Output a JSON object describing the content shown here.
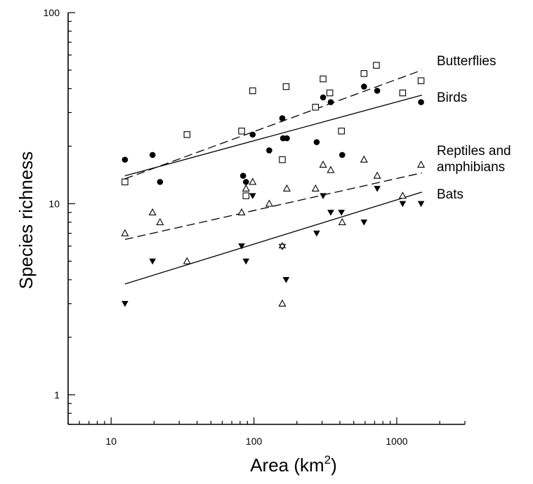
{
  "chart_data": {
    "type": "scatter",
    "xlabel": "Area (km",
    "xlabel_sup": "2",
    "xlabel_end": ")",
    "ylabel": "Species richness",
    "x_scale": "log",
    "y_scale": "log",
    "xlim": [
      5,
      3000
    ],
    "ylim": [
      0.7,
      100
    ],
    "x_ticks": [
      {
        "value": 10,
        "label": "10"
      },
      {
        "value": 100,
        "label": "100"
      },
      {
        "value": 1000,
        "label": "1000"
      }
    ],
    "y_ticks": [
      {
        "value": 1,
        "label": "1"
      },
      {
        "value": 10,
        "label": "10"
      },
      {
        "value": 100,
        "label": "100"
      }
    ],
    "grid": false,
    "series": [
      {
        "name": "Butterflies",
        "label_lines": [
          "Butterflies"
        ],
        "marker": "open-square",
        "fit_line": "dashed",
        "fit": {
          "x": [
            12.5,
            1500
          ],
          "y": [
            13.5,
            50
          ]
        },
        "points": [
          {
            "x": 12.5,
            "y": 13
          },
          {
            "x": 34,
            "y": 23
          },
          {
            "x": 82,
            "y": 24
          },
          {
            "x": 98,
            "y": 39
          },
          {
            "x": 88,
            "y": 11
          },
          {
            "x": 158,
            "y": 17
          },
          {
            "x": 168,
            "y": 41
          },
          {
            "x": 270,
            "y": 32
          },
          {
            "x": 305,
            "y": 45
          },
          {
            "x": 340,
            "y": 38
          },
          {
            "x": 410,
            "y": 24
          },
          {
            "x": 590,
            "y": 48
          },
          {
            "x": 720,
            "y": 53
          },
          {
            "x": 1100,
            "y": 38
          },
          {
            "x": 1480,
            "y": 44
          }
        ]
      },
      {
        "name": "Birds",
        "label_lines": [
          "Birds"
        ],
        "marker": "filled-circle",
        "fit_line": "solid",
        "fit": {
          "x": [
            12.5,
            1500
          ],
          "y": [
            14,
            37
          ]
        },
        "points": [
          {
            "x": 12.5,
            "y": 17
          },
          {
            "x": 19.5,
            "y": 18
          },
          {
            "x": 22,
            "y": 13
          },
          {
            "x": 84,
            "y": 14
          },
          {
            "x": 88,
            "y": 13
          },
          {
            "x": 98,
            "y": 23
          },
          {
            "x": 128,
            "y": 19
          },
          {
            "x": 158,
            "y": 28
          },
          {
            "x": 160,
            "y": 22
          },
          {
            "x": 170,
            "y": 22
          },
          {
            "x": 275,
            "y": 21
          },
          {
            "x": 305,
            "y": 36
          },
          {
            "x": 345,
            "y": 34
          },
          {
            "x": 415,
            "y": 18
          },
          {
            "x": 590,
            "y": 41
          },
          {
            "x": 730,
            "y": 39
          },
          {
            "x": 1480,
            "y": 34
          }
        ]
      },
      {
        "name": "Reptiles and amphibians",
        "label_lines": [
          "Reptiles and",
          "amphibians"
        ],
        "marker": "open-triangle",
        "fit_line": "dashed",
        "fit": {
          "x": [
            12.5,
            1500
          ],
          "y": [
            6.5,
            14.5
          ]
        },
        "points": [
          {
            "x": 12.5,
            "y": 7
          },
          {
            "x": 19.5,
            "y": 9
          },
          {
            "x": 22,
            "y": 8
          },
          {
            "x": 34,
            "y": 5
          },
          {
            "x": 82,
            "y": 9
          },
          {
            "x": 88,
            "y": 12
          },
          {
            "x": 98,
            "y": 13
          },
          {
            "x": 128,
            "y": 10
          },
          {
            "x": 158,
            "y": 3
          },
          {
            "x": 170,
            "y": 12
          },
          {
            "x": 270,
            "y": 12
          },
          {
            "x": 305,
            "y": 16
          },
          {
            "x": 345,
            "y": 15
          },
          {
            "x": 415,
            "y": 8
          },
          {
            "x": 590,
            "y": 17
          },
          {
            "x": 730,
            "y": 14
          },
          {
            "x": 1100,
            "y": 11
          },
          {
            "x": 1480,
            "y": 16
          }
        ]
      },
      {
        "name": "Bats",
        "label_lines": [
          "Bats"
        ],
        "marker": "filled-triangle-down",
        "fit_line": "solid",
        "fit": {
          "x": [
            12.5,
            1500
          ],
          "y": [
            3.8,
            11.5
          ]
        },
        "points": [
          {
            "x": 12.5,
            "y": 3
          },
          {
            "x": 19.5,
            "y": 5
          },
          {
            "x": 82,
            "y": 6
          },
          {
            "x": 88,
            "y": 5
          },
          {
            "x": 98,
            "y": 11
          },
          {
            "x": 168,
            "y": 4
          },
          {
            "x": 275,
            "y": 7
          },
          {
            "x": 305,
            "y": 11
          },
          {
            "x": 345,
            "y": 9
          },
          {
            "x": 410,
            "y": 9
          },
          {
            "x": 590,
            "y": 8
          },
          {
            "x": 730,
            "y": 12
          },
          {
            "x": 1100,
            "y": 10
          },
          {
            "x": 1480,
            "y": 10
          }
        ]
      }
    ],
    "extra_points": [
      {
        "x": 158,
        "y": 6,
        "marker": "star"
      }
    ]
  }
}
